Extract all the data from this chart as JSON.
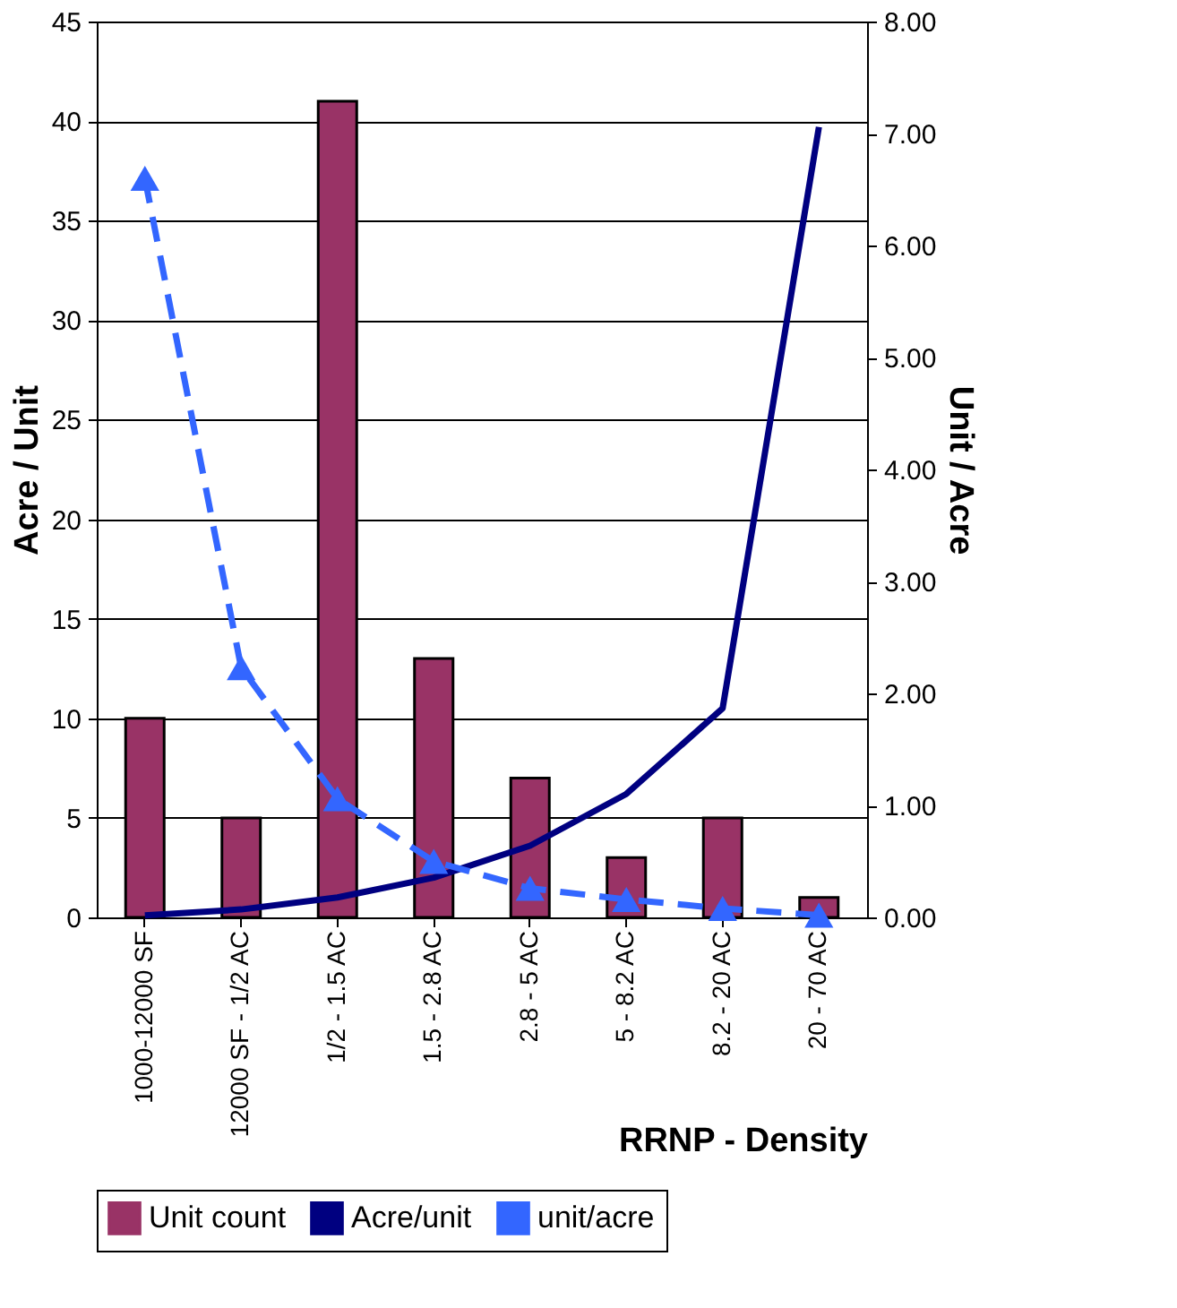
{
  "chart_data": {
    "type": "bar",
    "xlabel": "RRNP - Density",
    "ylabel": "Acre / Unit",
    "y2label": "Unit / Acre",
    "categories": [
      "1000-12000 SF",
      "12000 SF - 1/2 AC",
      "1/2 - 1.5 AC",
      "1.5 - 2.8 AC",
      "2.8 - 5 AC",
      "5 - 8.2 AC",
      "8.2 - 20 AC",
      "20 - 70 AC"
    ],
    "series": [
      {
        "name": "Unit count",
        "color": "#993366",
        "values": [
          10,
          5,
          41,
          13,
          7,
          3,
          5,
          1
        ]
      },
      {
        "name": "Acre/unit",
        "type": "line",
        "color": "#000080",
        "marker": "none",
        "line_style": "solid",
        "values": [
          0.1,
          0.4,
          1.0,
          2.0,
          3.6,
          6.2,
          10.5,
          39.7
        ]
      },
      {
        "name": "unit/acre",
        "type": "line",
        "axis": "y2",
        "color": "#3366ff",
        "marker": "triangle",
        "line_style": "dashed",
        "values": [
          6.6,
          2.23,
          1.06,
          0.5,
          0.26,
          0.16,
          0.08,
          0.02
        ]
      }
    ],
    "ylim": [
      0,
      45
    ],
    "yticks": [
      0,
      5,
      10,
      15,
      20,
      25,
      30,
      35,
      40,
      45
    ],
    "y2lim": [
      0,
      8
    ],
    "y2ticks": [
      {
        "value": 0,
        "label": "0.00"
      },
      {
        "value": 1,
        "label": "1.00"
      },
      {
        "value": 2,
        "label": "2.00"
      },
      {
        "value": 3,
        "label": "3.00"
      },
      {
        "value": 4,
        "label": "4.00"
      },
      {
        "value": 5,
        "label": "5.00"
      },
      {
        "value": 6,
        "label": "6.00"
      },
      {
        "value": 7,
        "label": "7.00"
      },
      {
        "value": 8,
        "label": "8.00"
      }
    ],
    "grid": "y",
    "legend": "bottom"
  }
}
